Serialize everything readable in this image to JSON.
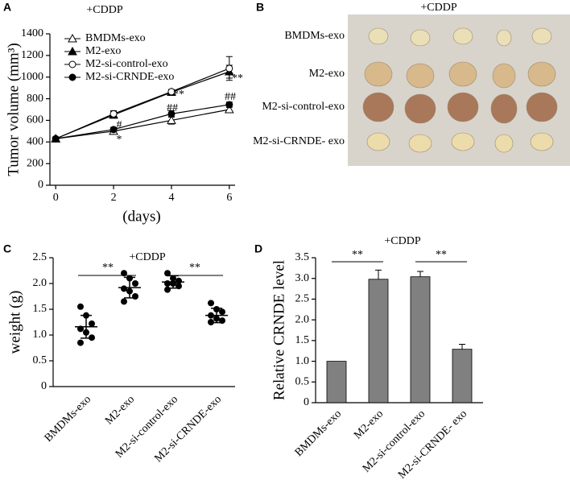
{
  "panel_labels": [
    "A",
    "B",
    "C",
    "D"
  ],
  "chart_data": [
    {
      "type": "line",
      "title": "+CDDP",
      "x_label": "(days)",
      "y_label": "Tumor volume (mm³)",
      "x": [
        0,
        2,
        4,
        6
      ],
      "xlim": [
        -0.2,
        6.2
      ],
      "xticks": [
        0,
        2,
        4,
        6
      ],
      "ylim": [
        0,
        1400
      ],
      "yticks": [
        0,
        200,
        400,
        600,
        800,
        1000,
        1200,
        1400
      ],
      "series": [
        {
          "name": "BMDMs-exo",
          "color": "#000000",
          "marker": "triangle",
          "marker_fill": "#ffffff",
          "values": [
            430,
            500,
            600,
            700
          ],
          "errors": [
            15,
            20,
            35,
            30
          ]
        },
        {
          "name": "M2-exo",
          "color": "#000000",
          "marker": "triangle",
          "marker_fill": "#000000",
          "values": [
            430,
            650,
            860,
            1050
          ],
          "errors": [
            15,
            30,
            20,
            60
          ]
        },
        {
          "name": "M2-si-control-exo",
          "color": "#000000",
          "marker": "circle",
          "marker_fill": "#ffffff",
          "values": [
            430,
            660,
            865,
            1080
          ],
          "errors": [
            15,
            30,
            20,
            110
          ]
        },
        {
          "name": "M2-si-CRNDE-exo",
          "color": "#000000",
          "marker": "circle",
          "marker_fill": "#000000",
          "values": [
            430,
            515,
            660,
            745
          ],
          "errors": [
            15,
            20,
            30,
            25
          ]
        }
      ],
      "annotations": [
        "*",
        "#",
        "**",
        "##",
        "**",
        "##"
      ]
    },
    {
      "type": "dot",
      "title": "+CDDP",
      "y_label": "weight (g)",
      "categories": [
        "BMDMs-exo",
        "M2-exo",
        "M2-si-control-exo",
        "M2-si-CRNDE-exo"
      ],
      "points": [
        [
          1.55,
          1.38,
          1.22,
          1.12,
          1.05,
          0.95,
          0.85
        ],
        [
          2.2,
          2.1,
          2.0,
          1.9,
          1.85,
          1.75,
          1.65
        ],
        [
          2.2,
          2.1,
          2.05,
          2.0,
          2.0,
          1.95,
          1.88
        ],
        [
          1.62,
          1.5,
          1.45,
          1.38,
          1.32,
          1.28,
          1.25
        ]
      ],
      "mean": [
        1.16,
        1.92,
        2.03,
        1.38
      ],
      "sd": [
        0.22,
        0.2,
        0.12,
        0.14
      ],
      "color": "#000000",
      "ylim": [
        0,
        2.5
      ],
      "yticks": [
        0,
        0.5,
        {
          "value": 1,
          "label": "1.0"
        },
        1.5,
        {
          "value": 2,
          "label": "2.0"
        },
        2.5
      ],
      "annotations": [
        "**",
        "**"
      ]
    },
    {
      "type": "bar",
      "title": "+CDDP",
      "y_label": "Relative CRNDE level",
      "categories": [
        "BMDMs-exo",
        "M2-exo",
        "M2-si-control-exo",
        "M2-si-CRNDE- exo"
      ],
      "values": [
        1.0,
        2.98,
        3.04,
        1.29
      ],
      "errors": [
        0,
        0.22,
        0.13,
        0.12
      ],
      "color": "#808080",
      "ylim": [
        0,
        3.5
      ],
      "yticks": [
        0,
        0.5,
        {
          "value": 1,
          "label": "1.0"
        },
        1.5,
        {
          "value": 2,
          "label": "2.0"
        },
        2.5,
        {
          "value": 3,
          "label": "3.0"
        },
        3.5
      ],
      "annotations": [
        "**",
        "**"
      ]
    }
  ],
  "photo": {
    "title": "+CDDP",
    "rows": [
      "BMDMs-exo",
      "M2-exo",
      "M2-si-control-exo",
      "M2-si-CRNDE- exo"
    ]
  }
}
